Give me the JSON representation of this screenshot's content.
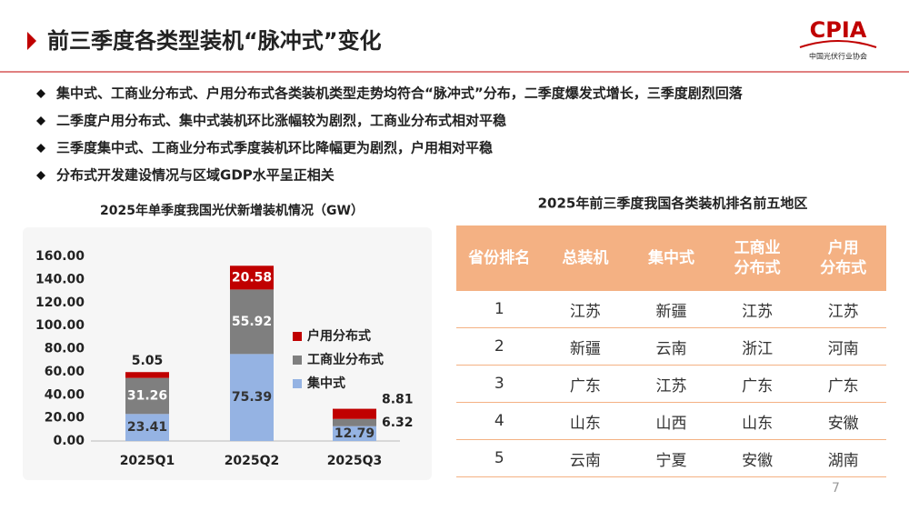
{
  "header": {
    "title": "前三季度各类型装机“脉冲式”变化",
    "logo": "CPIA",
    "logo_subtitle": "中国光伏行业协会"
  },
  "bullets": [
    "集中式、工商业分布式、户用分布式各类装机类型走势均符合“脉冲式”分布，二季度爆发式增长，三季度剧烈回落",
    "二季度户用分布式、集中式装机环比涨幅较为剧烈，工商业分布式相对平稳",
    "三季度集中式、工商业分布式季度装机环比降幅更为剧烈，户用相对平稳",
    "分布式开发建设情况与区域GDP水平呈正相关"
  ],
  "chart_data": {
    "type": "stacked_bar",
    "title": "2025年单季度我国光伏新增装机情况（GW）",
    "categories": [
      "2025Q1",
      "2025Q2",
      "2025Q3"
    ],
    "series": [
      {
        "name": "集中式",
        "color": "#95b3e3",
        "values": [
          23.41,
          75.39,
          12.79
        ]
      },
      {
        "name": "工商业分布式",
        "color": "#7f7f7f",
        "values": [
          31.26,
          55.92,
          6.32
        ]
      },
      {
        "name": "户用分布式",
        "color": "#c00000",
        "values": [
          5.05,
          20.58,
          8.81
        ]
      }
    ],
    "ylim": [
      0,
      160
    ],
    "yticks": [
      {
        "value": 0,
        "label": "0.00"
      },
      {
        "value": 20,
        "label": "20.00"
      },
      {
        "value": 40,
        "label": "40.00"
      },
      {
        "value": 60,
        "label": "60.00"
      },
      {
        "value": 80,
        "label": "80.00"
      },
      {
        "value": 100,
        "label": "100.00"
      },
      {
        "value": 120,
        "label": "120.00"
      },
      {
        "value": 140,
        "label": "140.00"
      },
      {
        "value": 160,
        "label": "160.00"
      }
    ],
    "grid": false
  },
  "table": {
    "title": "2025年前三季度我国各类装机排名前五地区",
    "columns": [
      "省份排名",
      "总装机",
      "集中式",
      "工商业\n分布式",
      "户用\n分布式"
    ],
    "rows": [
      [
        "1",
        "江苏",
        "新疆",
        "江苏",
        "江苏"
      ],
      [
        "2",
        "新疆",
        "云南",
        "浙江",
        "河南"
      ],
      [
        "3",
        "广东",
        "江苏",
        "广东",
        "广东"
      ],
      [
        "4",
        "山东",
        "山西",
        "山东",
        "安徽"
      ],
      [
        "5",
        "云南",
        "宁夏",
        "安徽",
        "湖南"
      ]
    ]
  },
  "page_number": "7"
}
